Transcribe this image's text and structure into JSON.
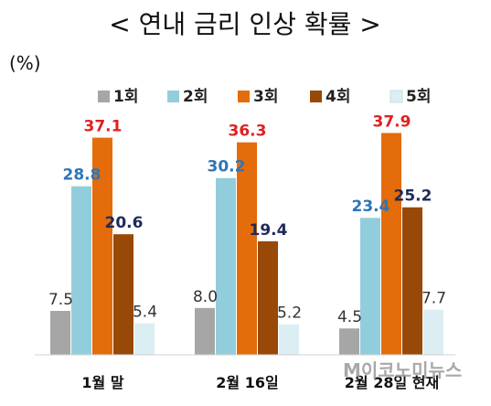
{
  "chart_data": {
    "type": "bar",
    "title": "< 연내 금리 인상 확률 >",
    "unit_label": "(%)",
    "categories": [
      "1월 말",
      "2월 16일",
      "2월 28일 현재"
    ],
    "series": [
      {
        "name": "1회",
        "values": [
          7.5,
          8.0,
          4.5
        ]
      },
      {
        "name": "2회",
        "values": [
          28.8,
          30.2,
          23.4
        ]
      },
      {
        "name": "3회",
        "values": [
          37.1,
          36.3,
          37.9
        ]
      },
      {
        "name": "4회",
        "values": [
          20.6,
          19.4,
          25.2
        ]
      },
      {
        "name": "5회",
        "values": [
          5.4,
          5.2,
          7.7
        ]
      }
    ],
    "ylim": [
      0,
      40
    ],
    "legend_position": "top",
    "grid": false,
    "colors": [
      "#a6a6a6",
      "#92cddc",
      "#e46c0a",
      "#984807",
      "#dbeef4"
    ],
    "label_colors": [
      "#333333",
      "#2e75b6",
      "#e02020",
      "#1f2a5a",
      "#333333"
    ]
  },
  "watermark": "M이코노미뉴스"
}
